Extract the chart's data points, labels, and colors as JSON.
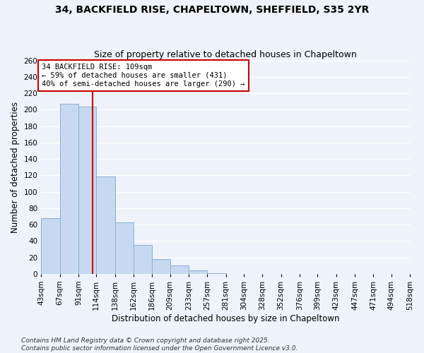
{
  "title": "34, BACKFIELD RISE, CHAPELTOWN, SHEFFIELD, S35 2YR",
  "subtitle": "Size of property relative to detached houses in Chapeltown",
  "xlabel": "Distribution of detached houses by size in Chapeltown",
  "ylabel": "Number of detached properties",
  "bin_edges": [
    43,
    67,
    91,
    114,
    138,
    162,
    186,
    209,
    233,
    257,
    281,
    304,
    328,
    352,
    376,
    399,
    423,
    447,
    471,
    494,
    518
  ],
  "bin_labels": [
    "43sqm",
    "67sqm",
    "91sqm",
    "114sqm",
    "138sqm",
    "162sqm",
    "186sqm",
    "209sqm",
    "233sqm",
    "257sqm",
    "281sqm",
    "304sqm",
    "328sqm",
    "352sqm",
    "376sqm",
    "399sqm",
    "423sqm",
    "447sqm",
    "471sqm",
    "494sqm",
    "518sqm"
  ],
  "counts": [
    68,
    207,
    204,
    119,
    63,
    35,
    18,
    10,
    4,
    1,
    0,
    0,
    0,
    0,
    0,
    0,
    0,
    0,
    0,
    0
  ],
  "bar_color": "#c6d9f0",
  "bar_edge_color": "#8ab0d4",
  "property_line_x": 109,
  "property_line_color": "#cc0000",
  "annotation_text": "34 BACKFIELD RISE: 109sqm\n← 59% of detached houses are smaller (431)\n40% of semi-detached houses are larger (290) →",
  "annotation_box_color": "#ffffff",
  "annotation_box_edge": "#cc0000",
  "ylim": [
    0,
    260
  ],
  "yticks": [
    0,
    20,
    40,
    60,
    80,
    100,
    120,
    140,
    160,
    180,
    200,
    220,
    240,
    260
  ],
  "footer_line1": "Contains HM Land Registry data © Crown copyright and database right 2025.",
  "footer_line2": "Contains public sector information licensed under the Open Government Licence v3.0.",
  "bg_color": "#eef2fb",
  "grid_color": "#ffffff",
  "title_fontsize": 10,
  "subtitle_fontsize": 9,
  "axis_label_fontsize": 8.5,
  "tick_fontsize": 7.5,
  "annot_fontsize": 7.5,
  "footer_fontsize": 6.5
}
